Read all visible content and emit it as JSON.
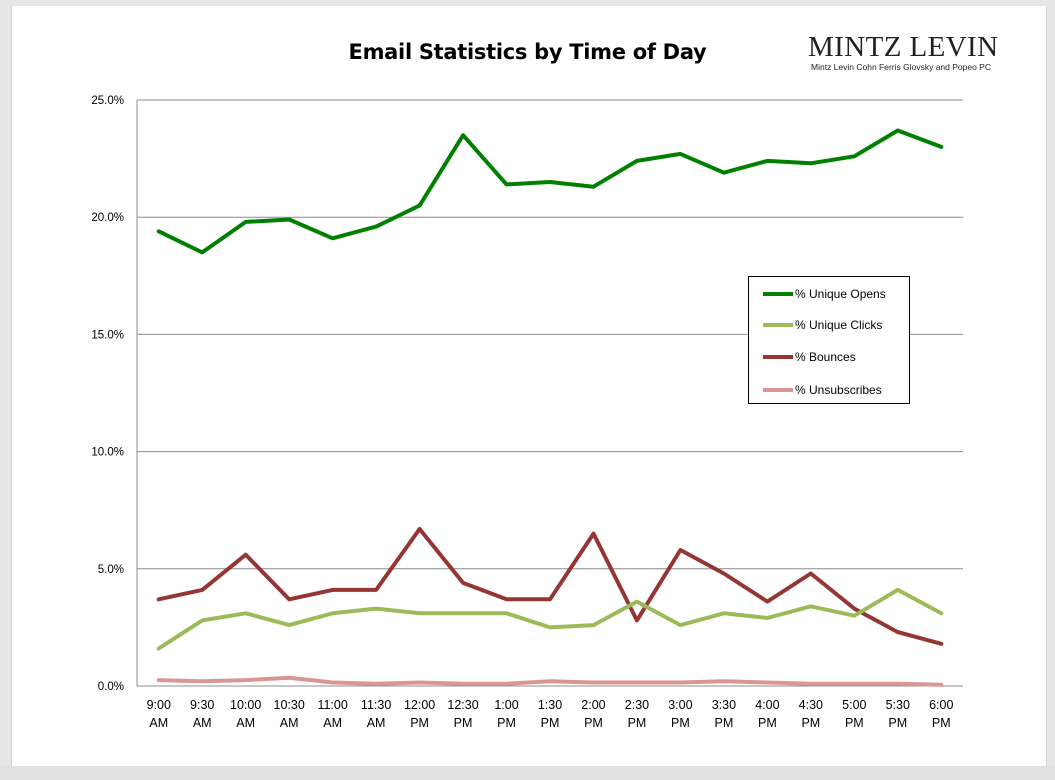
{
  "logo": {
    "name": "MINTZ LEVIN",
    "subtitle": "Mintz Levin Cohn Ferris Glovsky and Popeo PC"
  },
  "chart_data": {
    "type": "line",
    "title": "Email Statistics by Time of Day",
    "categories": [
      [
        "9:00",
        "AM"
      ],
      [
        "9:30",
        "AM"
      ],
      [
        "10:00",
        "AM"
      ],
      [
        "10:30",
        "AM"
      ],
      [
        "11:00",
        "AM"
      ],
      [
        "11:30",
        "AM"
      ],
      [
        "12:00",
        "PM"
      ],
      [
        "12:30",
        "PM"
      ],
      [
        "1:00",
        "PM"
      ],
      [
        "1:30",
        "PM"
      ],
      [
        "2:00",
        "PM"
      ],
      [
        "2:30",
        "PM"
      ],
      [
        "3:00",
        "PM"
      ],
      [
        "3:30",
        "PM"
      ],
      [
        "4:00",
        "PM"
      ],
      [
        "4:30",
        "PM"
      ],
      [
        "5:00",
        "PM"
      ],
      [
        "5:30",
        "PM"
      ],
      [
        "6:00",
        "PM"
      ]
    ],
    "ylim": [
      0,
      25
    ],
    "yticks": [
      "0.0%",
      "5.0%",
      "10.0%",
      "15.0%",
      "20.0%",
      "25.0%"
    ],
    "grid": true,
    "legend_position": "right",
    "series": [
      {
        "name": "% Unique Opens",
        "color": "#008000",
        "values": [
          19.4,
          18.5,
          19.8,
          19.9,
          19.1,
          19.6,
          20.5,
          23.5,
          21.4,
          21.5,
          21.3,
          22.4,
          22.7,
          21.9,
          22.4,
          22.3,
          22.6,
          23.7,
          23.0
        ]
      },
      {
        "name": "% Unique Clicks",
        "color": "#9bbb59",
        "values": [
          1.6,
          2.8,
          3.1,
          2.6,
          3.1,
          3.3,
          3.1,
          3.1,
          3.1,
          2.5,
          2.6,
          3.6,
          2.6,
          3.1,
          2.9,
          3.4,
          3.0,
          4.1,
          3.1
        ]
      },
      {
        "name": "% Bounces",
        "color": "#943634",
        "values": [
          3.7,
          4.1,
          5.6,
          3.7,
          4.1,
          4.1,
          6.7,
          4.4,
          3.7,
          3.7,
          6.5,
          2.8,
          5.8,
          4.8,
          3.6,
          4.8,
          3.3,
          2.3,
          1.8
        ]
      },
      {
        "name": "% Unsubscribes",
        "color": "#d99694",
        "values": [
          0.25,
          0.2,
          0.25,
          0.35,
          0.15,
          0.1,
          0.15,
          0.1,
          0.1,
          0.2,
          0.15,
          0.15,
          0.15,
          0.2,
          0.15,
          0.1,
          0.1,
          0.1,
          0.05
        ]
      }
    ]
  }
}
